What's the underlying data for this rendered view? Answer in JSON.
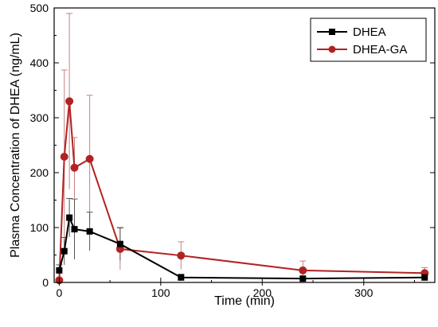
{
  "chart_data": {
    "type": "line",
    "title": "",
    "xlabel": "Time (min)",
    "ylabel": "Plasma Concentration of DHEA (ng/mL)",
    "xlim": [
      -5,
      370
    ],
    "ylim": [
      0,
      500
    ],
    "x_ticks": [
      0,
      100,
      200,
      300
    ],
    "y_ticks": [
      0,
      100,
      200,
      300,
      400,
      500
    ],
    "legend_position": "top-right",
    "grid": false,
    "series": [
      {
        "name": "DHEA",
        "color": "#000000",
        "marker": "square",
        "x": [
          0,
          5,
          10,
          15,
          30,
          60,
          120,
          240,
          360
        ],
        "y": [
          22,
          57,
          118,
          97,
          93,
          70,
          9,
          7,
          9
        ],
        "err": [
          10,
          25,
          35,
          55,
          35,
          30,
          6,
          4,
          5
        ]
      },
      {
        "name": "DHEA-GA",
        "color": "#b22222",
        "marker": "circle",
        "x": [
          0,
          5,
          10,
          15,
          30,
          60,
          120,
          240,
          360
        ],
        "y": [
          4,
          229,
          330,
          209,
          225,
          61,
          49,
          22,
          17
        ],
        "err": [
          3,
          158,
          160,
          55,
          116,
          38,
          25,
          17,
          10
        ]
      }
    ]
  }
}
